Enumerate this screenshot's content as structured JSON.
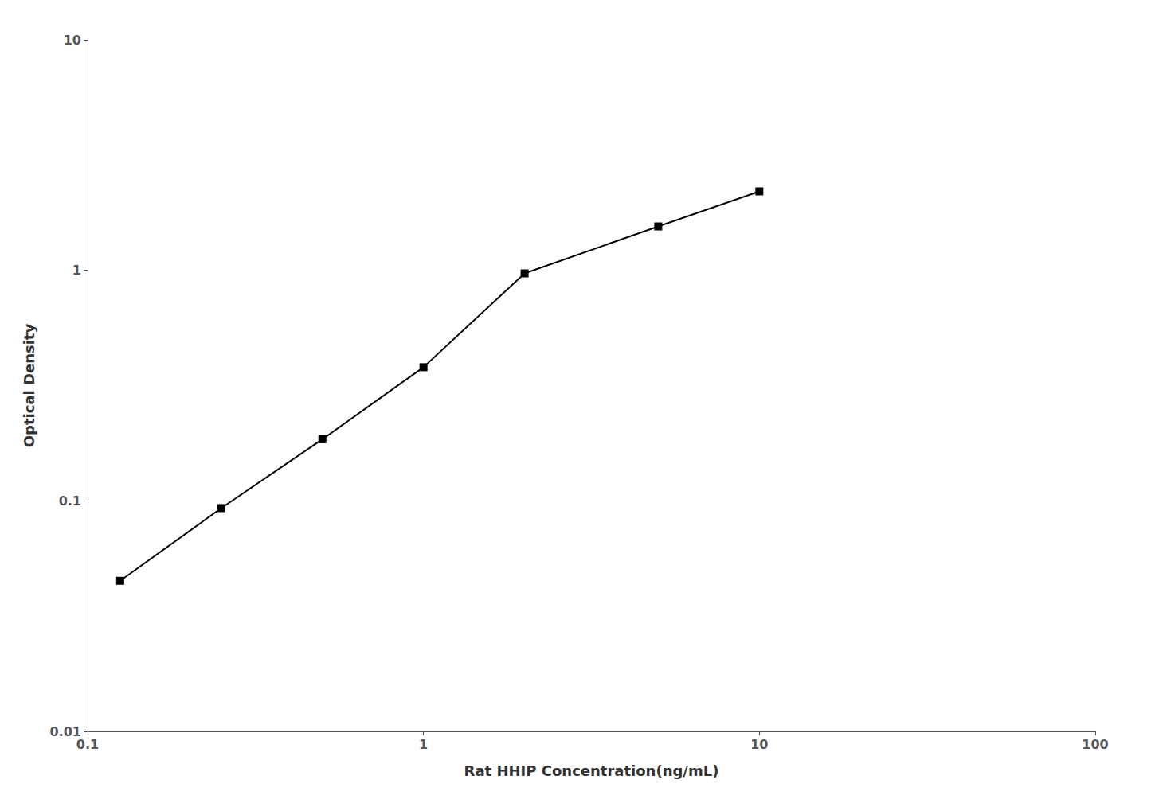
{
  "chart_data": {
    "type": "line",
    "xlabel": "Rat HHIP Concentration(ng/mL)",
    "ylabel": "Optical Density",
    "x": [
      0.125,
      0.25,
      0.5,
      1.0,
      2.0,
      5.0,
      10.0
    ],
    "values": [
      0.045,
      0.093,
      0.185,
      0.38,
      0.97,
      1.55,
      2.2
    ],
    "xlim": [
      0.1,
      100
    ],
    "ylim": [
      0.01,
      10
    ],
    "xticks": [
      0.1,
      1,
      10,
      100
    ],
    "yticks": [
      0.01,
      0.1,
      1,
      10
    ],
    "log": true,
    "grid": false,
    "marker": "square",
    "color": "#000000"
  }
}
